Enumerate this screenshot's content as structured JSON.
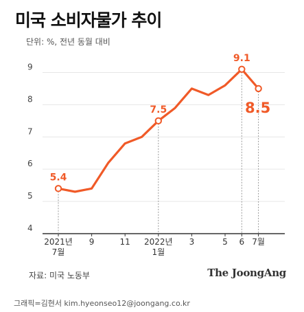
{
  "header": {
    "title": "미국 소비자물가 추이",
    "unit": "단위: %, 전년 동월 대비"
  },
  "footer": {
    "source": "자료: 미국 노동부",
    "brand": "The JoongAng",
    "credit": "그래픽=김현서 kim.hyeonseo12@joongang.co.kr"
  },
  "colors": {
    "line": "#f05a28",
    "grid": "#e6e6e6",
    "axis": "#333333"
  },
  "chart_data": {
    "type": "line",
    "title": "미국 소비자물가 추이",
    "unit_label": "단위: %, 전년 동월 대비",
    "ylim": [
      4,
      9.5
    ],
    "yticks": [
      4,
      5,
      6,
      7,
      8,
      9
    ],
    "grid": true,
    "x": [
      "2021-07",
      "2021-08",
      "2021-09",
      "2021-10",
      "2021-11",
      "2021-12",
      "2022-01",
      "2022-02",
      "2022-03",
      "2022-04",
      "2022-05",
      "2022-06",
      "2022-07"
    ],
    "xtick_labels": [
      "2021년 7월",
      "",
      "9",
      "",
      "11",
      "",
      "2022년 1월",
      "",
      "3",
      "",
      "5",
      "6",
      "7월"
    ],
    "values": [
      5.4,
      5.3,
      5.4,
      6.2,
      6.8,
      7.0,
      7.5,
      7.9,
      8.5,
      8.3,
      8.6,
      9.1,
      8.5
    ],
    "annotations": [
      {
        "index": 0,
        "label": "5.4"
      },
      {
        "index": 6,
        "label": "7.5"
      },
      {
        "index": 11,
        "label": "9.1"
      },
      {
        "index": 12,
        "label": "8.5"
      }
    ]
  }
}
